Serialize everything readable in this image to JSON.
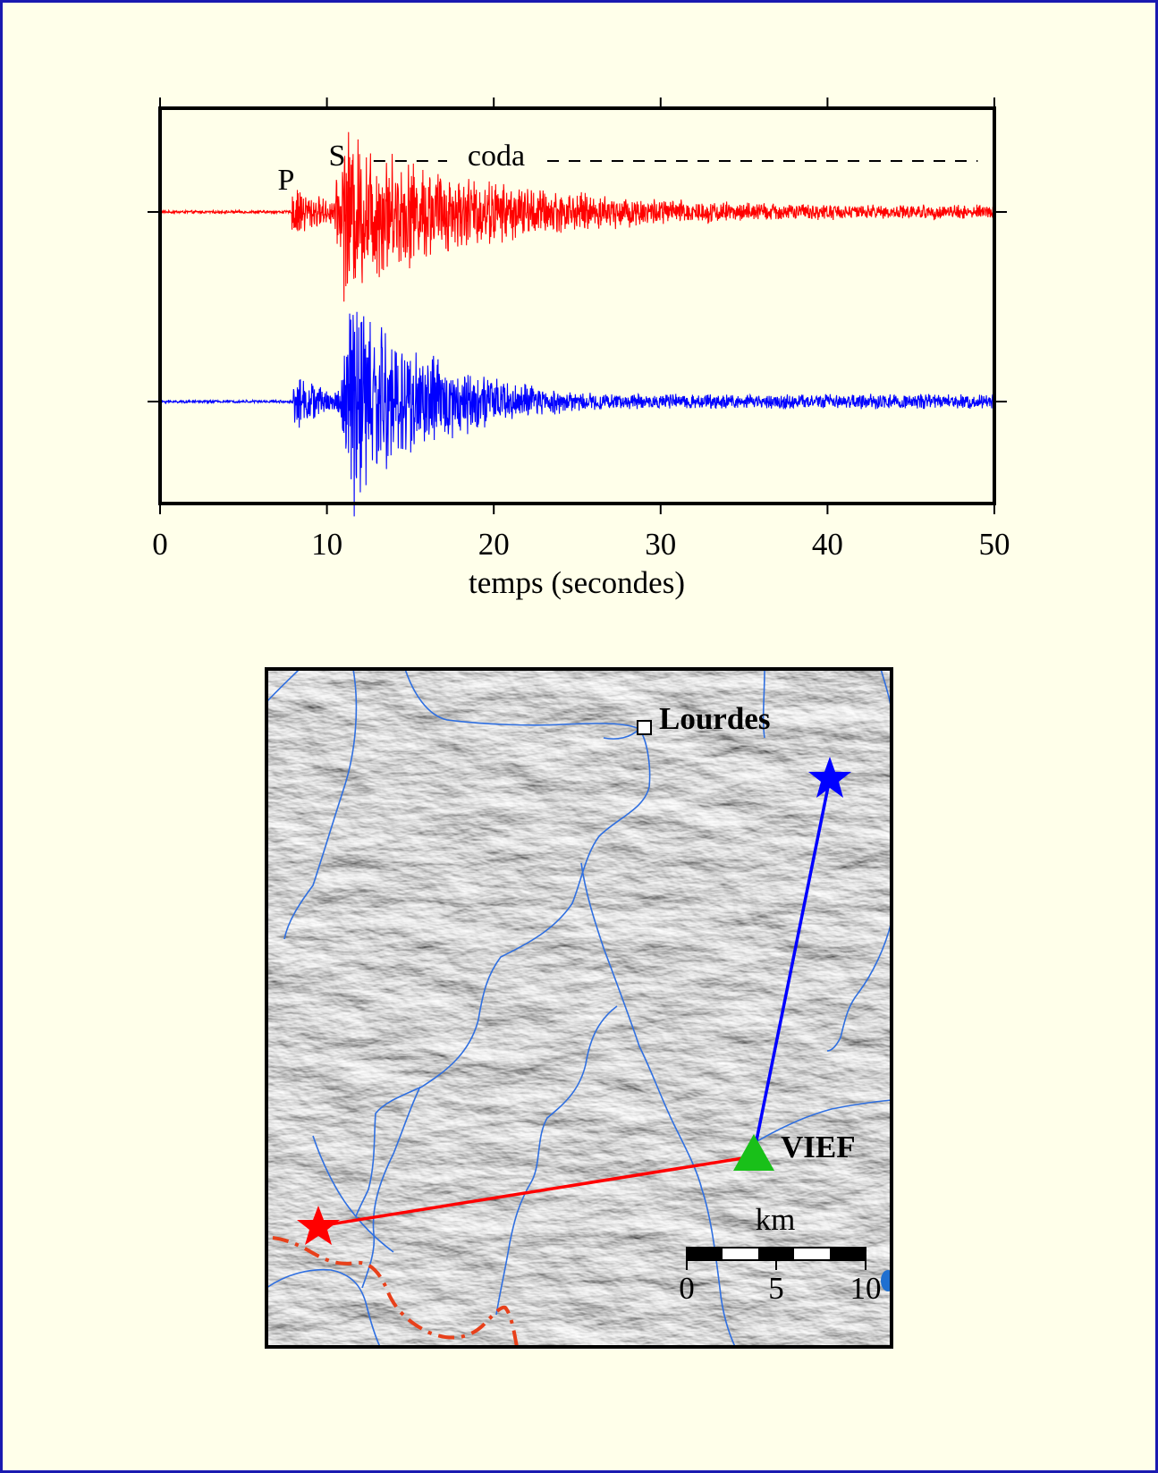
{
  "chart_data": {
    "type": "line",
    "xlabel": "temps (secondes)",
    "xlim": [
      0,
      50
    ],
    "x_ticks": [
      0,
      10,
      20,
      30,
      40,
      50
    ],
    "series": [
      {
        "color": "#ff0000",
        "p_arrival": 7.9,
        "s_arrival": 11.0,
        "peak_amplitude": 0.62,
        "noise": 0.012,
        "envelope_decay": 0.14,
        "tail_level": 0.08
      },
      {
        "color": "#0000ff",
        "p_arrival": 8.0,
        "s_arrival": 11.3,
        "peak_amplitude": 0.95,
        "noise": 0.012,
        "envelope_decay": 0.2,
        "tail_level": 0.025
      }
    ],
    "annotations": {
      "p_label": "P",
      "s_label": "S",
      "coda_label": "coda",
      "coda_span": [
        12.8,
        49
      ]
    }
  },
  "map": {
    "town_label": "Lourdes",
    "station_label": "VIEF",
    "scale_title": "km",
    "scale_ticks": [
      "0",
      "5",
      "10"
    ],
    "colors": {
      "river": "#2f6fe0",
      "station": "#19c019",
      "event_near": "#ff0000",
      "event_far": "#0000ff",
      "border": "#e8401a"
    }
  }
}
